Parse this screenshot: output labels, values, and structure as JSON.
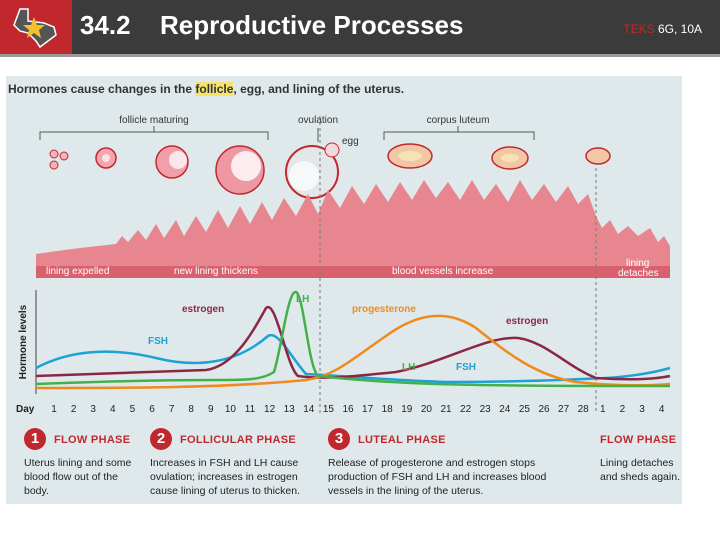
{
  "header": {
    "section_number": "34.2",
    "section_title": "Reproductive Processes",
    "teks_word": "TEKS",
    "teks_codes": "6G, 10A"
  },
  "figure": {
    "title_before": "Hormones cause changes in the ",
    "title_highlight": "follicle",
    "title_after": ", egg, and lining of the uterus.",
    "top_labels": {
      "follicle_maturing": "follicle maturing",
      "ovulation": "ovulation",
      "egg": "egg",
      "corpus_luteum": "corpus luteum"
    },
    "lining_labels": {
      "lining_expelled": "lining expelled",
      "new_lining_thickens": "new lining thickens",
      "blood_vessels_increase": "blood vessels increase",
      "lining_detaches": "lining\ndetaches"
    },
    "colors": {
      "estrogen": "#8b2744",
      "progesterone": "#f08a1c",
      "lh": "#43b04a",
      "fsh": "#1ea2d4",
      "lining": "#e8868f",
      "accent": "#c0282d"
    }
  },
  "chart_data": {
    "type": "line",
    "ylabel": "Hormone levels",
    "xlabel": "Day",
    "x_ticks": [
      "1",
      "2",
      "3",
      "4",
      "5",
      "6",
      "7",
      "8",
      "9",
      "10",
      "11",
      "12",
      "13",
      "14",
      "15",
      "16",
      "17",
      "18",
      "19",
      "20",
      "21",
      "22",
      "23",
      "24",
      "25",
      "26",
      "27",
      "28",
      "1",
      "2",
      "3",
      "4"
    ],
    "series": [
      {
        "name": "estrogen",
        "color": "#8b2744",
        "label_early": "estrogen",
        "label_late": "estrogen"
      },
      {
        "name": "progesterone",
        "color": "#f08a1c",
        "label": "progesterone"
      },
      {
        "name": "LH",
        "color": "#43b04a",
        "label_early": "LH",
        "label_late": "LH"
      },
      {
        "name": "FSH",
        "color": "#1ea2d4",
        "label_early": "FSH",
        "label_late": "FSH"
      }
    ]
  },
  "phases": [
    {
      "number": "1",
      "title": "FLOW PHASE",
      "description": "Uterus lining and some blood flow out of the body."
    },
    {
      "number": "2",
      "title": "FOLLICULAR PHASE",
      "description": "Increases in FSH and LH cause ovulation; increases in estrogen cause lining of uterus to thicken."
    },
    {
      "number": "3",
      "title": "LUTEAL PHASE",
      "description": "Release of progesterone and estrogen stops production of FSH and LH and increases blood vessels in the lining of the uterus."
    },
    {
      "number": "",
      "title": "FLOW PHASE",
      "description": "Lining detaches and sheds again."
    }
  ]
}
